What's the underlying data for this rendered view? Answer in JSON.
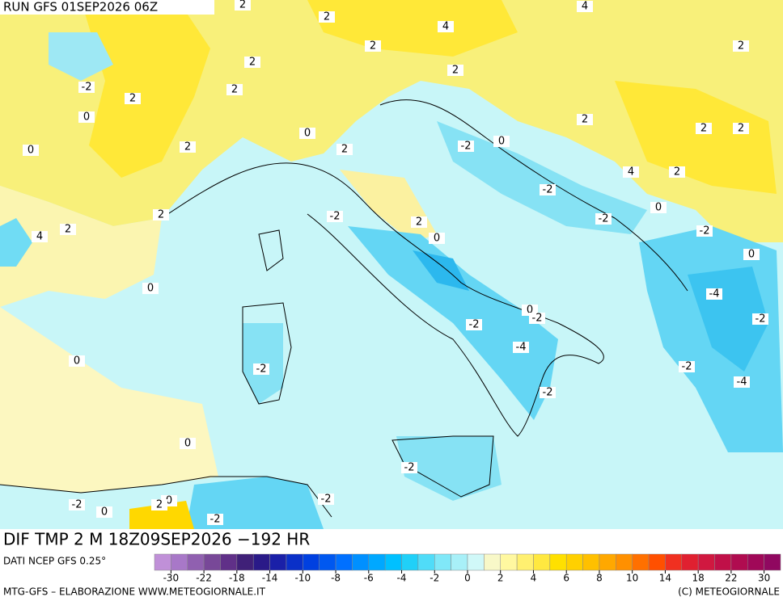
{
  "header": {
    "run": "RUN GFS 01SEP2026 06Z"
  },
  "footer": {
    "field": "DIF TMP 2 M 18Z09SEP2026 −192 HR",
    "source": "DATI NCEP GFS 0.25°",
    "credit": "MTG-GFS – ELABORAZIONE WWW.METEOGIORNALE.IT",
    "copyright": "(C) METEOGIORNALE"
  },
  "colorbar": {
    "ticks": [
      -30,
      -22,
      -18,
      -14,
      -10,
      -8,
      -6,
      -4,
      -2,
      0,
      2,
      4,
      6,
      8,
      10,
      14,
      18,
      22,
      30
    ],
    "colors": [
      "#c090d8",
      "#a878c8",
      "#9060b0",
      "#784898",
      "#603088",
      "#402078",
      "#2a1a88",
      "#1a20a8",
      "#0a30c8",
      "#0040e0",
      "#0058f0",
      "#0070ff",
      "#0090ff",
      "#00a8ff",
      "#00c0ff",
      "#20d0f8",
      "#50dcf8",
      "#80e8f8",
      "#a8f0f8",
      "#d0f8f8",
      "#f8f8c8",
      "#fff8a0",
      "#fff070",
      "#ffe840",
      "#ffe000",
      "#ffd000",
      "#ffc000",
      "#ffa800",
      "#ff9000",
      "#ff7000",
      "#ff5000",
      "#f03020",
      "#e02030",
      "#d01840",
      "#c01048",
      "#b00c50",
      "#a00858",
      "#900860"
    ]
  },
  "contour_labels": [
    2,
    2,
    4,
    4,
    2,
    2,
    2,
    2,
    -2,
    2,
    2,
    0,
    2,
    0,
    2,
    2,
    -2,
    0,
    0,
    2,
    2,
    4,
    2,
    -2,
    2,
    -2,
    -2,
    0,
    2,
    2,
    4,
    0,
    -2,
    0,
    0,
    -4,
    0,
    -2,
    -2,
    -2,
    -4,
    0,
    -2,
    -2,
    -4,
    -2,
    0,
    -2,
    0,
    2,
    -2,
    -2,
    0,
    -2
  ]
}
